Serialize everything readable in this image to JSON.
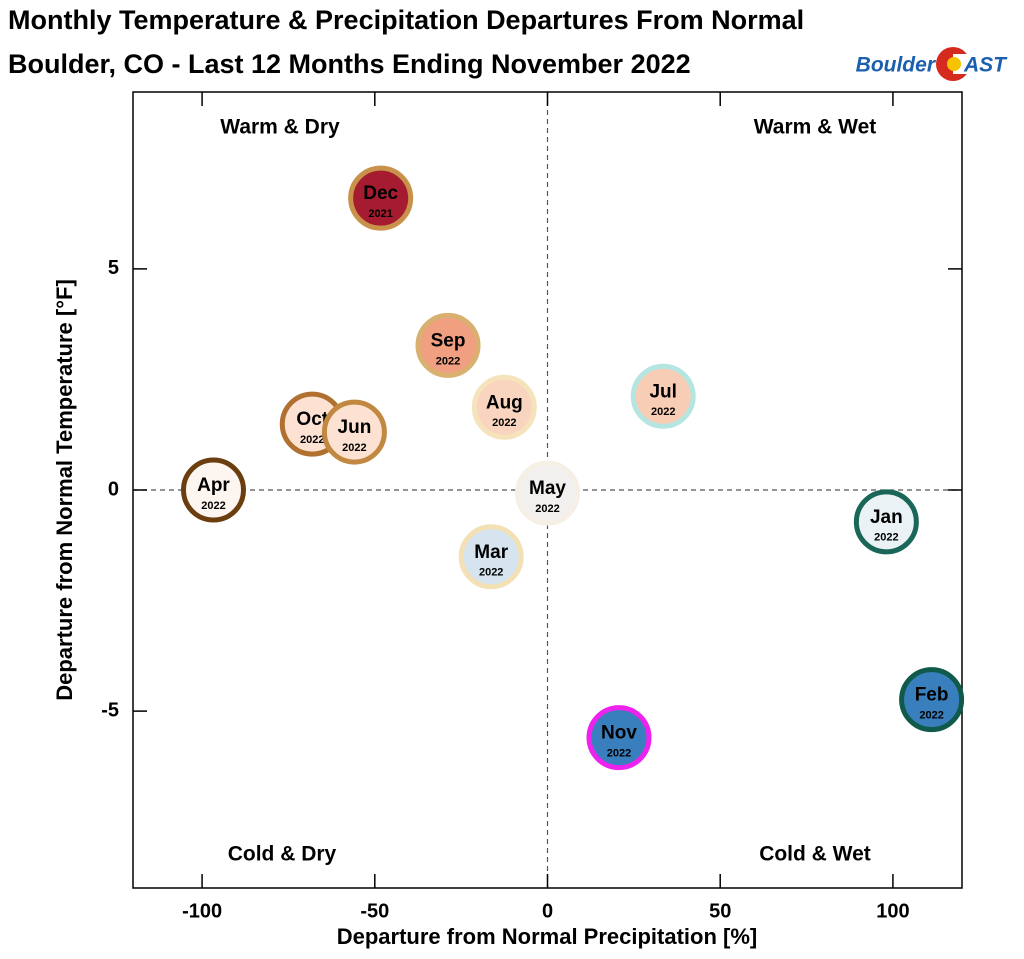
{
  "chart_data": {
    "type": "scatter",
    "title": "Monthly Temperature & Precipitation Departures From Normal",
    "subtitle": "Boulder, CO - Last 12 Months Ending November 2022",
    "logo": {
      "left": "Boulder",
      "right": "AST"
    },
    "x_label": "Departure from Normal Precipitation [%]",
    "y_label": "Departure from Normal Temperature [°F]",
    "quadrant_labels": {
      "top_left": "Warm & Dry",
      "top_right": "Warm & Wet",
      "bottom_left": "Cold & Dry",
      "bottom_right": "Cold & Wet"
    },
    "xlim": [
      -120,
      120
    ],
    "ylim": [
      -9,
      9
    ],
    "xticks": [
      -100,
      -50,
      0,
      50,
      100
    ],
    "yticks": [
      -5,
      0,
      5
    ],
    "zero_lines": true,
    "points": [
      {
        "label": "Dec",
        "year": "2021",
        "x": -48.3,
        "y": 6.6,
        "color": "#a51c30",
        "edge": "#c8924a"
      },
      {
        "label": "Sep",
        "year": "2022",
        "x": -28.8,
        "y": 3.27,
        "color": "#f0a080",
        "edge": "#d9b070"
      },
      {
        "label": "Aug",
        "year": "2022",
        "x": -12.5,
        "y": 1.87,
        "color": "#f9d5bf",
        "edge": "#f5e3bc"
      },
      {
        "label": "Jul",
        "year": "2022",
        "x": 33.5,
        "y": 2.12,
        "color": "#f8cdb5",
        "edge": "#b5e5e0"
      },
      {
        "label": "Oct",
        "year": "2022",
        "x": -68.1,
        "y": 1.49,
        "color": "#fde2d3",
        "edge": "#b07030"
      },
      {
        "label": "Jun",
        "year": "2022",
        "x": -55.9,
        "y": 1.31,
        "color": "#fde2d3",
        "edge": "#c08840"
      },
      {
        "label": "Apr",
        "year": "2022",
        "x": -96.7,
        "y": 0.0,
        "color": "#fdf5f0",
        "edge": "#6b3e10"
      },
      {
        "label": "May",
        "year": "2022",
        "x": 0.0,
        "y": -0.07,
        "color": "#f2f0ee",
        "edge": "#f5efe5"
      },
      {
        "label": "Mar",
        "year": "2022",
        "x": -16.3,
        "y": -1.51,
        "color": "#d5e4ef",
        "edge": "#f3e0b5"
      },
      {
        "label": "Jan",
        "year": "2022",
        "x": 98.1,
        "y": -0.72,
        "color": "#eaf2f5",
        "edge": "#1a6658"
      },
      {
        "label": "Nov",
        "year": "2022",
        "x": 20.7,
        "y": -5.6,
        "color": "#3a7fbd",
        "edge": "#ee22ee"
      },
      {
        "label": "Feb",
        "year": "2022",
        "x": 111.2,
        "y": -4.74,
        "color": "#3a7fbd",
        "edge": "#0f5a4a"
      }
    ]
  }
}
